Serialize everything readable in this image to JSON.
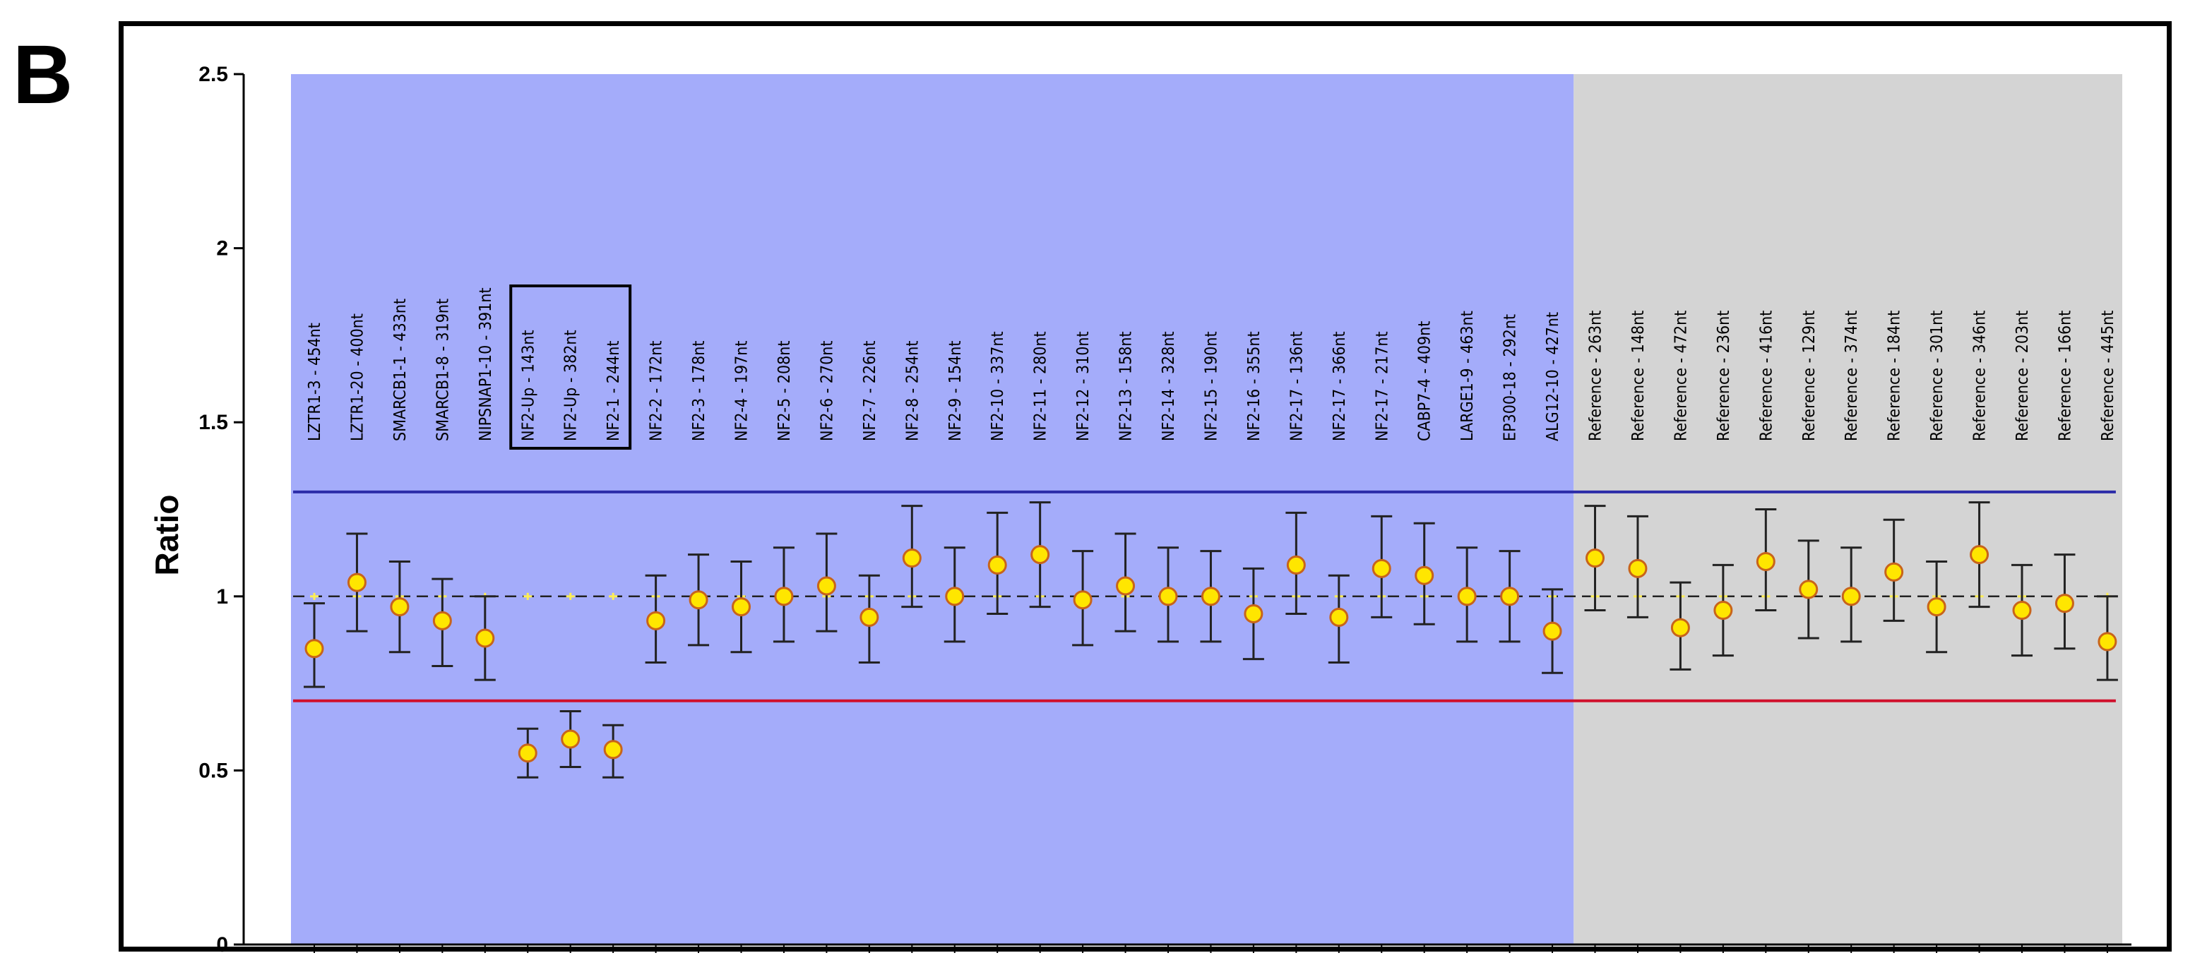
{
  "panel_label": "B",
  "chart_data": {
    "type": "scatter",
    "ylabel": "Ratio",
    "ylim": [
      0,
      2.5
    ],
    "yticks": [
      "0",
      "0.5",
      "1",
      "1.5",
      "2",
      "2.5"
    ],
    "ytick_values": [
      0,
      0.5,
      1,
      1.5,
      2,
      2.5
    ],
    "upper_threshold": 1.3,
    "lower_threshold": 0.7,
    "reference_line": 1.0,
    "highlighted_labels": [
      "NF2-Up - 143nt",
      "NF2-Up - 382nt",
      "NF2-1 - 244nt"
    ],
    "regions": [
      {
        "group": "test",
        "first_index": 0,
        "last_index": 29,
        "color": "#a4acfa"
      },
      {
        "group": "reference",
        "first_index": 30,
        "last_index": 42,
        "color": "#d4d4d4"
      }
    ],
    "colors": {
      "upper_line": "#2c2ca8",
      "lower_line": "#d0102c",
      "marker_fill": "#ffe600",
      "marker_edge": "#c8641a",
      "errorbar": "#222222"
    },
    "probes": [
      {
        "label": "LZTR1-3 - 454nt",
        "value": 0.85,
        "low": 0.74,
        "high": 0.98
      },
      {
        "label": "LZTR1-20 - 400nt",
        "value": 1.04,
        "low": 0.9,
        "high": 1.18
      },
      {
        "label": "SMARCB1-1 - 433nt",
        "value": 0.97,
        "low": 0.84,
        "high": 1.1
      },
      {
        "label": "SMARCB1-8 - 319nt",
        "value": 0.93,
        "low": 0.8,
        "high": 1.05
      },
      {
        "label": "NIPSNAP1-10 - 391nt",
        "value": 0.88,
        "low": 0.76,
        "high": 1.0
      },
      {
        "label": "NF2-Up - 143nt",
        "value": 0.55,
        "low": 0.48,
        "high": 0.62
      },
      {
        "label": "NF2-Up - 382nt",
        "value": 0.59,
        "low": 0.51,
        "high": 0.67
      },
      {
        "label": "NF2-1 - 244nt",
        "value": 0.56,
        "low": 0.48,
        "high": 0.63
      },
      {
        "label": "NF2-2 - 172nt",
        "value": 0.93,
        "low": 0.81,
        "high": 1.06
      },
      {
        "label": "NF2-3 - 178nt",
        "value": 0.99,
        "low": 0.86,
        "high": 1.12
      },
      {
        "label": "NF2-4 - 197nt",
        "value": 0.97,
        "low": 0.84,
        "high": 1.1
      },
      {
        "label": "NF2-5 - 208nt",
        "value": 1.0,
        "low": 0.87,
        "high": 1.14
      },
      {
        "label": "NF2-6 - 270nt",
        "value": 1.03,
        "low": 0.9,
        "high": 1.18
      },
      {
        "label": "NF2-7 - 226nt",
        "value": 0.94,
        "low": 0.81,
        "high": 1.06
      },
      {
        "label": "NF2-8 - 254nt",
        "value": 1.11,
        "low": 0.97,
        "high": 1.26
      },
      {
        "label": "NF2-9 - 154nt",
        "value": 1.0,
        "low": 0.87,
        "high": 1.14
      },
      {
        "label": "NF2-10 - 337nt",
        "value": 1.09,
        "low": 0.95,
        "high": 1.24
      },
      {
        "label": "NF2-11 - 280nt",
        "value": 1.12,
        "low": 0.97,
        "high": 1.27
      },
      {
        "label": "NF2-12 - 310nt",
        "value": 0.99,
        "low": 0.86,
        "high": 1.13
      },
      {
        "label": "NF2-13 - 158nt",
        "value": 1.03,
        "low": 0.9,
        "high": 1.18
      },
      {
        "label": "NF2-14 - 328nt",
        "value": 1.0,
        "low": 0.87,
        "high": 1.14
      },
      {
        "label": "NF2-15 - 190nt",
        "value": 1.0,
        "low": 0.87,
        "high": 1.13
      },
      {
        "label": "NF2-16 - 355nt",
        "value": 0.95,
        "low": 0.82,
        "high": 1.08
      },
      {
        "label": "NF2-17 - 136nt",
        "value": 1.09,
        "low": 0.95,
        "high": 1.24
      },
      {
        "label": "NF2-17 - 366nt",
        "value": 0.94,
        "low": 0.81,
        "high": 1.06
      },
      {
        "label": "NF2-17 - 217nt",
        "value": 1.08,
        "low": 0.94,
        "high": 1.23
      },
      {
        "label": "CABP7-4 - 409nt",
        "value": 1.06,
        "low": 0.92,
        "high": 1.21
      },
      {
        "label": "LARGE1-9 - 463nt",
        "value": 1.0,
        "low": 0.87,
        "high": 1.14
      },
      {
        "label": "EP300-18 - 292nt",
        "value": 1.0,
        "low": 0.87,
        "high": 1.13
      },
      {
        "label": "ALG12-10 - 427nt",
        "value": 0.9,
        "low": 0.78,
        "high": 1.02
      },
      {
        "label": "Reference - 263nt",
        "value": 1.11,
        "low": 0.96,
        "high": 1.26
      },
      {
        "label": "Reference - 148nt",
        "value": 1.08,
        "low": 0.94,
        "high": 1.23
      },
      {
        "label": "Reference - 472nt",
        "value": 0.91,
        "low": 0.79,
        "high": 1.04
      },
      {
        "label": "Reference - 236nt",
        "value": 0.96,
        "low": 0.83,
        "high": 1.09
      },
      {
        "label": "Reference - 416nt",
        "value": 1.1,
        "low": 0.96,
        "high": 1.25
      },
      {
        "label": "Reference - 129nt",
        "value": 1.02,
        "low": 0.88,
        "high": 1.16
      },
      {
        "label": "Reference - 374nt",
        "value": 1.0,
        "low": 0.87,
        "high": 1.14
      },
      {
        "label": "Reference - 184nt",
        "value": 1.07,
        "low": 0.93,
        "high": 1.22
      },
      {
        "label": "Reference - 301nt",
        "value": 0.97,
        "low": 0.84,
        "high": 1.1
      },
      {
        "label": "Reference - 346nt",
        "value": 1.12,
        "low": 0.97,
        "high": 1.27
      },
      {
        "label": "Reference - 203nt",
        "value": 0.96,
        "low": 0.83,
        "high": 1.09
      },
      {
        "label": "Reference - 166nt",
        "value": 0.98,
        "low": 0.85,
        "high": 1.12
      },
      {
        "label": "Reference - 445nt",
        "value": 0.87,
        "low": 0.76,
        "high": 1.0
      }
    ]
  }
}
